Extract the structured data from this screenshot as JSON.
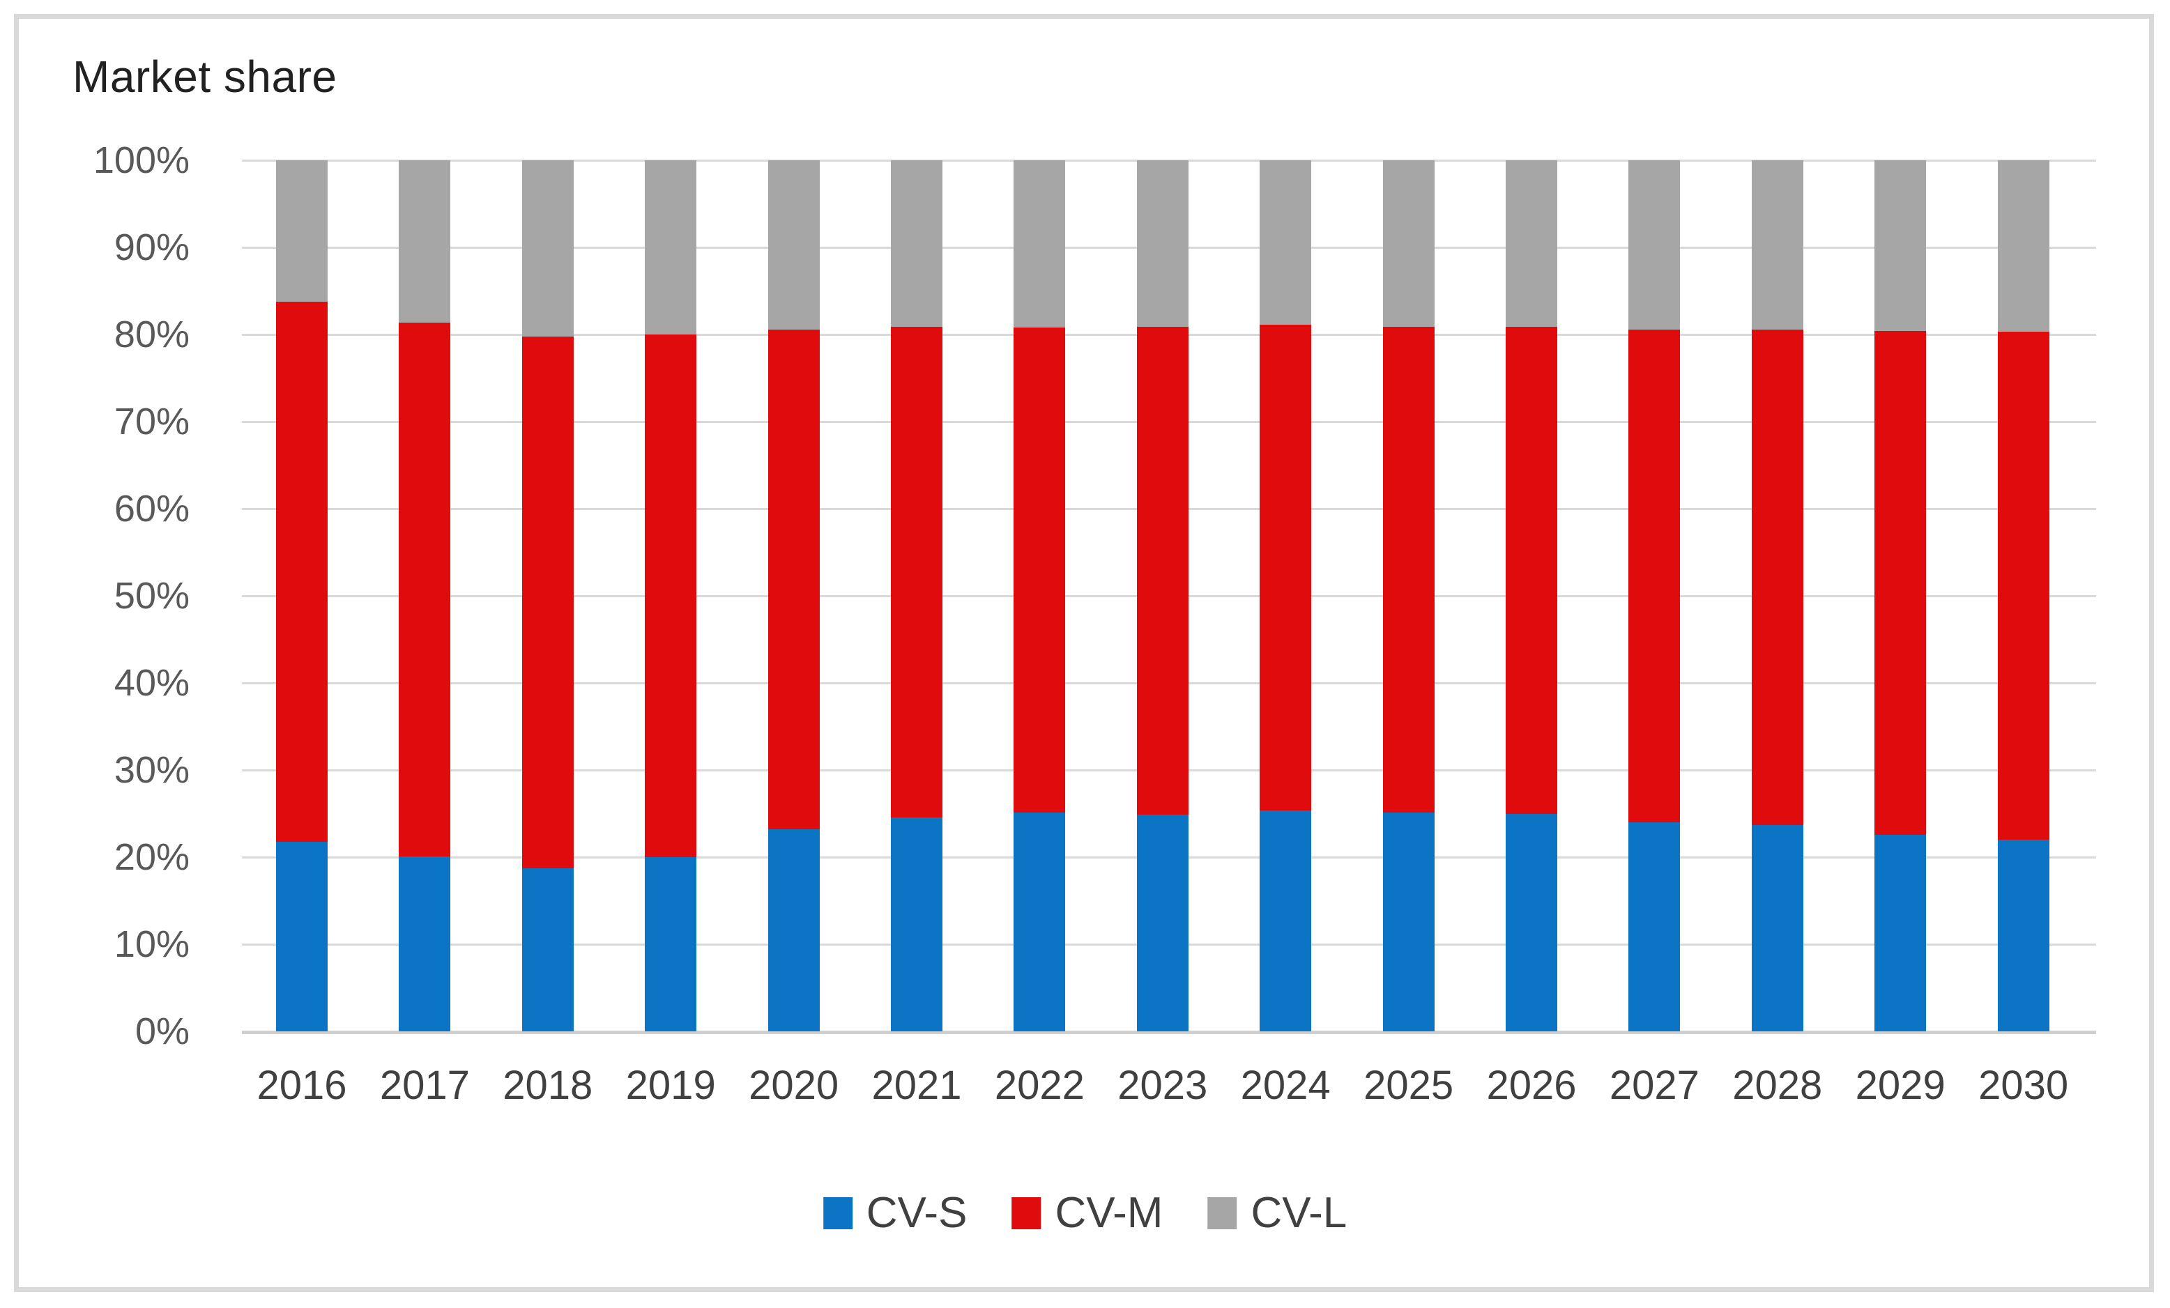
{
  "title": "Market share",
  "colors": {
    "cv_s_blue": "#0b74c4",
    "cv_m_red": "#e00b0c",
    "cv_l_gray": "#a6a6a6",
    "gridline": "#d9d9d9",
    "axis_baseline": "#cfcfcf",
    "frame_border": "#d9d9d9",
    "y_tick_text": "#595959",
    "x_tick_text": "#404040",
    "title_text": "#212121",
    "background": "#ffffff"
  },
  "chart_data": {
    "type": "bar",
    "stacked": true,
    "units": "percent",
    "title": "Market share",
    "xlabel": "",
    "ylabel": "",
    "ylim": [
      0,
      100
    ],
    "grid": true,
    "categories": [
      "2016",
      "2017",
      "2018",
      "2019",
      "2020",
      "2021",
      "2022",
      "2023",
      "2024",
      "2025",
      "2026",
      "2027",
      "2028",
      "2029",
      "2030"
    ],
    "series": [
      {
        "name": "CV-S",
        "color": "#0b74c4",
        "values": [
          21.8,
          20.1,
          18.7,
          20.0,
          23.2,
          24.6,
          25.1,
          24.9,
          25.4,
          25.1,
          25.0,
          24.0,
          23.7,
          22.6,
          22.0
        ]
      },
      {
        "name": "CV-M",
        "color": "#e00b0c",
        "values": [
          62.0,
          61.3,
          61.1,
          60.0,
          57.4,
          56.3,
          55.7,
          56.0,
          55.7,
          55.8,
          55.9,
          56.6,
          56.9,
          57.8,
          58.3
        ]
      },
      {
        "name": "CV-L",
        "color": "#a6a6a6",
        "values": [
          16.2,
          18.6,
          20.2,
          20.0,
          19.4,
          19.1,
          19.2,
          19.1,
          18.9,
          19.1,
          19.1,
          19.4,
          19.4,
          19.6,
          19.7
        ]
      }
    ],
    "y_axis": {
      "tick_labels": [
        "100%",
        "90%",
        "80%",
        "70%",
        "60%",
        "50%",
        "40%",
        "30%",
        "20%",
        "10%",
        "0%"
      ],
      "tick_values": [
        100,
        90,
        80,
        70,
        60,
        50,
        40,
        30,
        20,
        10,
        0
      ]
    },
    "legend": {
      "position": "bottom",
      "entries": [
        "CV-S",
        "CV-M",
        "CV-L"
      ]
    }
  }
}
